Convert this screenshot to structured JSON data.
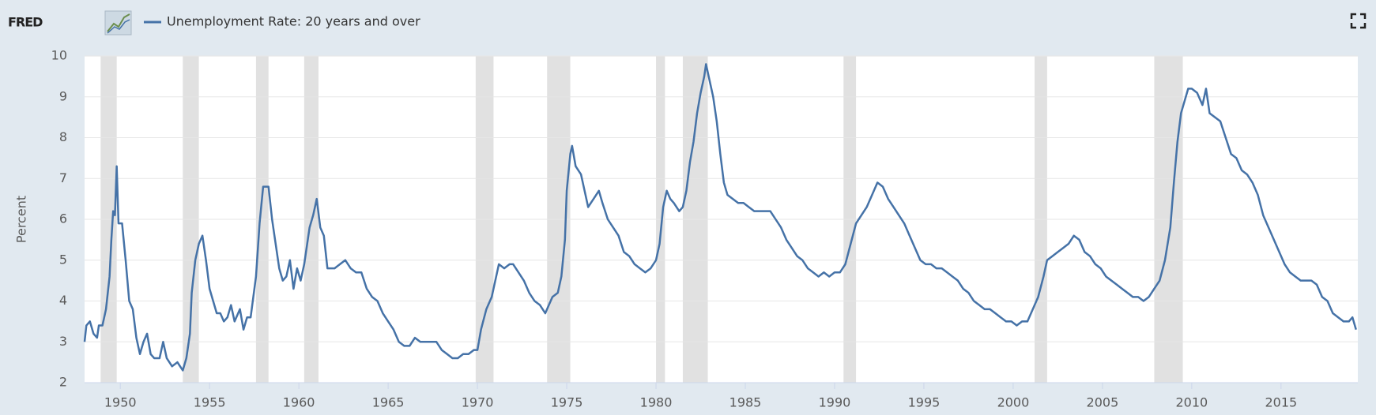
{
  "logo": "FRED",
  "chart_data": {
    "type": "line",
    "ylabel": "Percent",
    "grid": true,
    "xlim": [
      1948,
      2019.3
    ],
    "xticks": [
      1950,
      1955,
      1960,
      1965,
      1970,
      1975,
      1980,
      1985,
      1990,
      1995,
      2000,
      2005,
      2010,
      2015
    ],
    "ylim": [
      2,
      10
    ],
    "yticks": [
      2,
      3,
      4,
      5,
      6,
      7,
      8,
      9,
      10
    ],
    "recessions": [
      [
        1948.9,
        1949.8
      ],
      [
        1953.5,
        1954.4
      ],
      [
        1957.6,
        1958.3
      ],
      [
        1960.3,
        1961.1
      ],
      [
        1969.9,
        1970.9
      ],
      [
        1973.9,
        1975.2
      ],
      [
        1980.0,
        1980.5
      ],
      [
        1981.5,
        1982.9
      ],
      [
        1990.5,
        1991.2
      ],
      [
        2001.2,
        2001.9
      ],
      [
        2007.9,
        2009.5
      ]
    ],
    "recession_color": "#e1e1e1",
    "x": [
      1948.0,
      1948.1,
      1948.3,
      1948.5,
      1948.7,
      1948.8,
      1949.0,
      1949.2,
      1949.4,
      1949.5,
      1949.6,
      1949.7,
      1949.8,
      1949.9,
      1950.1,
      1950.3,
      1950.5,
      1950.7,
      1950.9,
      1951.1,
      1951.3,
      1951.5,
      1951.7,
      1951.9,
      1952.2,
      1952.4,
      1952.6,
      1952.9,
      1953.2,
      1953.5,
      1953.7,
      1953.9,
      1954.0,
      1954.2,
      1954.4,
      1954.6,
      1954.8,
      1955.0,
      1955.2,
      1955.4,
      1955.6,
      1955.8,
      1956.0,
      1956.2,
      1956.4,
      1956.7,
      1956.9,
      1957.1,
      1957.3,
      1957.6,
      1957.8,
      1958.0,
      1958.3,
      1958.5,
      1958.7,
      1958.9,
      1959.1,
      1959.3,
      1959.5,
      1959.7,
      1959.9,
      1960.1,
      1960.3,
      1960.6,
      1960.8,
      1961.0,
      1961.2,
      1961.4,
      1961.6,
      1962.0,
      1962.3,
      1962.6,
      1962.9,
      1963.2,
      1963.5,
      1963.8,
      1964.1,
      1964.4,
      1964.7,
      1965.0,
      1965.3,
      1965.6,
      1965.9,
      1966.2,
      1966.5,
      1966.8,
      1967.1,
      1967.4,
      1967.7,
      1968.0,
      1968.3,
      1968.6,
      1968.9,
      1969.2,
      1969.5,
      1969.8,
      1970.0,
      1970.2,
      1970.5,
      1970.8,
      1971.0,
      1971.2,
      1971.5,
      1971.8,
      1972.0,
      1972.3,
      1972.6,
      1972.9,
      1973.2,
      1973.5,
      1973.8,
      1974.0,
      1974.2,
      1974.5,
      1974.7,
      1974.9,
      1975.0,
      1975.2,
      1975.3,
      1975.5,
      1975.8,
      1976.0,
      1976.2,
      1976.5,
      1976.8,
      1977.0,
      1977.3,
      1977.6,
      1977.9,
      1978.2,
      1978.5,
      1978.8,
      1979.1,
      1979.4,
      1979.7,
      1980.0,
      1980.2,
      1980.4,
      1980.6,
      1980.8,
      1981.0,
      1981.3,
      1981.5,
      1981.7,
      1981.9,
      1982.1,
      1982.3,
      1982.5,
      1982.7,
      1982.8,
      1983.0,
      1983.2,
      1983.4,
      1983.6,
      1983.8,
      1984.0,
      1984.3,
      1984.6,
      1984.9,
      1985.2,
      1985.5,
      1985.8,
      1986.1,
      1986.4,
      1986.7,
      1987.0,
      1987.3,
      1987.6,
      1987.9,
      1988.2,
      1988.5,
      1988.8,
      1989.1,
      1989.4,
      1989.7,
      1990.0,
      1990.3,
      1990.6,
      1990.9,
      1991.2,
      1991.5,
      1991.8,
      1992.1,
      1992.4,
      1992.7,
      1993.0,
      1993.3,
      1993.6,
      1993.9,
      1994.2,
      1994.5,
      1994.8,
      1995.1,
      1995.4,
      1995.7,
      1996.0,
      1996.3,
      1996.6,
      1996.9,
      1997.2,
      1997.5,
      1997.8,
      1998.1,
      1998.4,
      1998.7,
      1999.0,
      1999.3,
      1999.6,
      1999.9,
      2000.2,
      2000.5,
      2000.8,
      2001.1,
      2001.4,
      2001.7,
      2001.9,
      2002.2,
      2002.5,
      2002.8,
      2003.1,
      2003.4,
      2003.7,
      2004.0,
      2004.3,
      2004.6,
      2004.9,
      2005.2,
      2005.5,
      2005.8,
      2006.1,
      2006.4,
      2006.7,
      2007.0,
      2007.3,
      2007.6,
      2007.9,
      2008.2,
      2008.5,
      2008.8,
      2009.0,
      2009.2,
      2009.4,
      2009.6,
      2009.8,
      2010.0,
      2010.3,
      2010.6,
      2010.8,
      2011.0,
      2011.3,
      2011.6,
      2011.9,
      2012.2,
      2012.5,
      2012.8,
      2013.1,
      2013.4,
      2013.7,
      2014.0,
      2014.3,
      2014.6,
      2014.9,
      2015.2,
      2015.5,
      2015.8,
      2016.1,
      2016.4,
      2016.7,
      2017.0,
      2017.3,
      2017.6,
      2017.9,
      2018.2,
      2018.5,
      2018.8,
      2019.0,
      2019.2
    ],
    "series": [
      {
        "name": "Unemployment Rate: 20 years and over",
        "color": "#4572a7",
        "values": [
          3.0,
          3.4,
          3.5,
          3.2,
          3.1,
          3.4,
          3.4,
          3.8,
          4.6,
          5.5,
          6.2,
          6.1,
          7.3,
          5.9,
          5.9,
          5.0,
          4.0,
          3.8,
          3.1,
          2.7,
          3.0,
          3.2,
          2.7,
          2.6,
          2.6,
          3.0,
          2.6,
          2.4,
          2.5,
          2.3,
          2.6,
          3.2,
          4.2,
          5.0,
          5.4,
          5.6,
          5.0,
          4.3,
          4.0,
          3.7,
          3.7,
          3.5,
          3.6,
          3.9,
          3.5,
          3.8,
          3.3,
          3.6,
          3.6,
          4.6,
          5.9,
          6.8,
          6.8,
          6.0,
          5.4,
          4.8,
          4.5,
          4.6,
          5.0,
          4.3,
          4.8,
          4.5,
          4.9,
          5.8,
          6.1,
          6.5,
          5.8,
          5.6,
          4.8,
          4.8,
          4.9,
          5.0,
          4.8,
          4.7,
          4.7,
          4.3,
          4.1,
          4.0,
          3.7,
          3.5,
          3.3,
          3.0,
          2.9,
          2.9,
          3.1,
          3.0,
          3.0,
          3.0,
          3.0,
          2.8,
          2.7,
          2.6,
          2.6,
          2.7,
          2.7,
          2.8,
          2.8,
          3.3,
          3.8,
          4.1,
          4.5,
          4.9,
          4.8,
          4.9,
          4.9,
          4.7,
          4.5,
          4.2,
          4.0,
          3.9,
          3.7,
          3.9,
          4.1,
          4.2,
          4.6,
          5.5,
          6.7,
          7.6,
          7.8,
          7.3,
          7.1,
          6.7,
          6.3,
          6.5,
          6.7,
          6.4,
          6.0,
          5.8,
          5.6,
          5.2,
          5.1,
          4.9,
          4.8,
          4.7,
          4.8,
          5.0,
          5.4,
          6.3,
          6.7,
          6.5,
          6.4,
          6.2,
          6.3,
          6.7,
          7.4,
          7.9,
          8.6,
          9.1,
          9.5,
          9.8,
          9.4,
          9.0,
          8.4,
          7.6,
          6.9,
          6.6,
          6.5,
          6.4,
          6.4,
          6.3,
          6.2,
          6.2,
          6.2,
          6.2,
          6.0,
          5.8,
          5.5,
          5.3,
          5.1,
          5.0,
          4.8,
          4.7,
          4.6,
          4.7,
          4.6,
          4.7,
          4.7,
          4.9,
          5.4,
          5.9,
          6.1,
          6.3,
          6.6,
          6.9,
          6.8,
          6.5,
          6.3,
          6.1,
          5.9,
          5.6,
          5.3,
          5.0,
          4.9,
          4.9,
          4.8,
          4.8,
          4.7,
          4.6,
          4.5,
          4.3,
          4.2,
          4.0,
          3.9,
          3.8,
          3.8,
          3.7,
          3.6,
          3.5,
          3.5,
          3.4,
          3.5,
          3.5,
          3.8,
          4.1,
          4.6,
          5.0,
          5.1,
          5.2,
          5.3,
          5.4,
          5.6,
          5.5,
          5.2,
          5.1,
          4.9,
          4.8,
          4.6,
          4.5,
          4.4,
          4.3,
          4.2,
          4.1,
          4.1,
          4.0,
          4.1,
          4.3,
          4.5,
          5.0,
          5.8,
          6.9,
          7.9,
          8.6,
          8.9,
          9.2,
          9.2,
          9.1,
          8.8,
          9.2,
          8.6,
          8.5,
          8.4,
          8.0,
          7.6,
          7.5,
          7.2,
          7.1,
          6.9,
          6.6,
          6.1,
          5.8,
          5.5,
          5.2,
          4.9,
          4.7,
          4.6,
          4.5,
          4.5,
          4.5,
          4.4,
          4.1,
          4.0,
          3.7,
          3.6,
          3.5,
          3.5,
          3.6,
          3.3
        ]
      }
    ]
  }
}
